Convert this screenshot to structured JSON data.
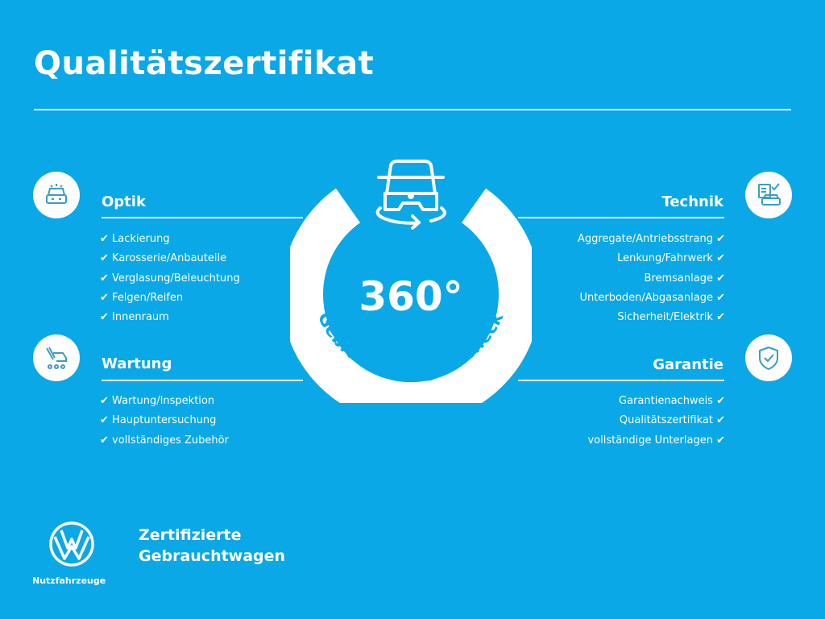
{
  "header": {
    "title": "Qualitätszertifikat"
  },
  "center": {
    "big": "360°",
    "ring_text": "Gebrauchtwagen-Check",
    "icon": "car-rotate-icon"
  },
  "sections": [
    {
      "id": "optik",
      "title": "Optik",
      "icon": "car-lights-icon",
      "items": [
        "Lackierung",
        "Karosserie/Anbauteile",
        "Verglasung/Beleuchtung",
        "Felgen/Reifen",
        "Innenraum"
      ]
    },
    {
      "id": "wartung",
      "title": "Wartung",
      "icon": "service-van-icon",
      "items": [
        "Wartung/Inspektion",
        "Hauptuntersuchung",
        "vollständiges Zubehör"
      ]
    },
    {
      "id": "technik",
      "title": "Technik",
      "icon": "checklist-car-icon",
      "items": [
        "Aggregate/Antriebsstrang",
        "Lenkung/Fahrwerk",
        "Bremsanlage",
        "Unterboden/Abgasanlage",
        "Sicherheit/Elektrik"
      ]
    },
    {
      "id": "garantie",
      "title": "Garantie",
      "icon": "shield-check-icon",
      "items": [
        "Garantienachweis",
        "Qualitätszertifikat",
        "vollständige Unterlagen"
      ]
    }
  ],
  "check_mark": "✔",
  "footer": {
    "brand_line1": "Zertifizierte",
    "brand_line2": "Gebrauchtwagen",
    "logo_label": "Nutzfahrzeuge"
  },
  "colors": {
    "background": "#0aa8e6",
    "foreground": "#ffffff"
  }
}
